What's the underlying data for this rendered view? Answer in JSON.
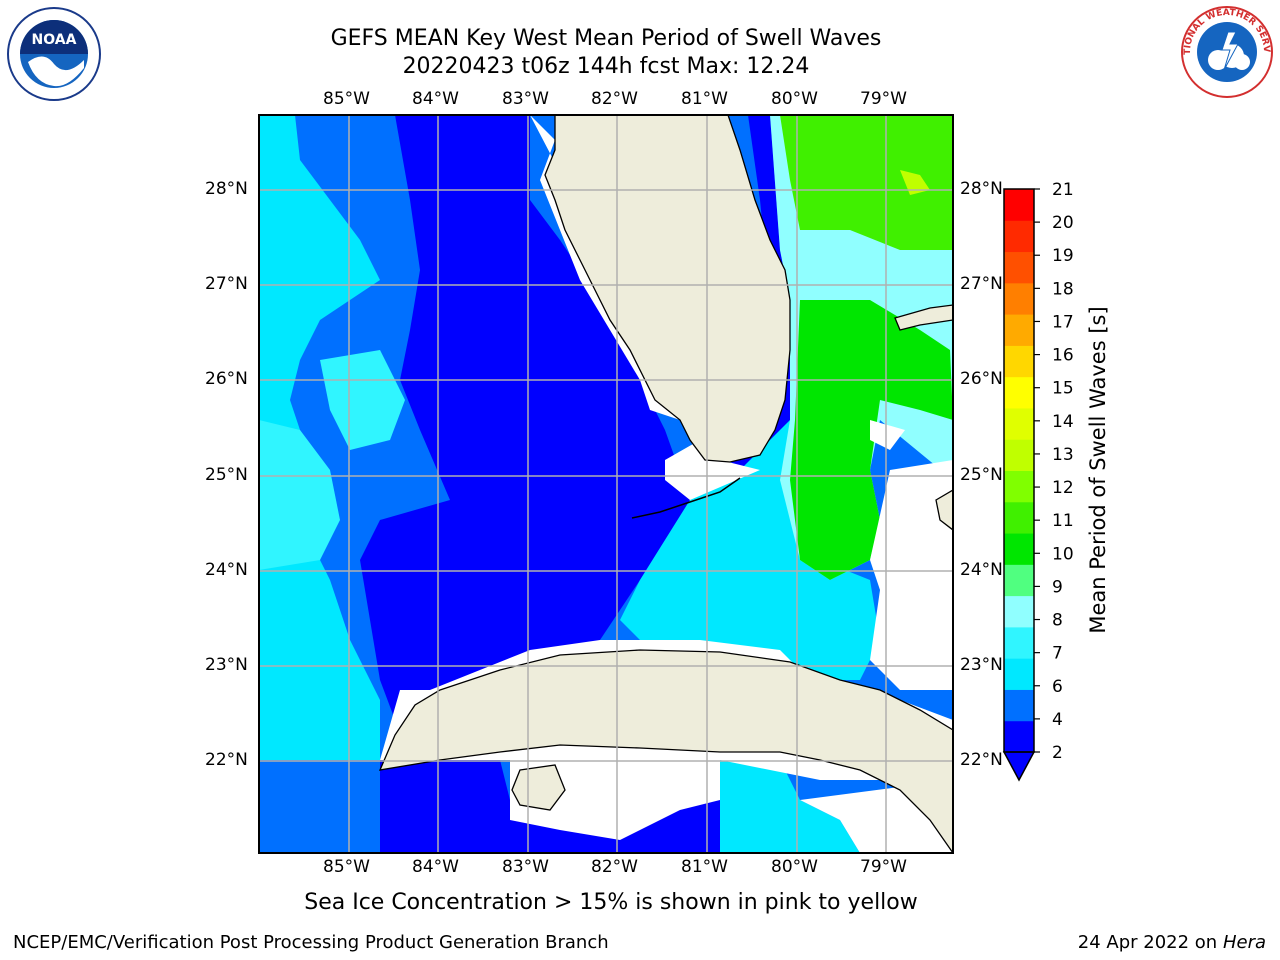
{
  "title": {
    "line1": "GEFS MEAN Key West Mean Period of Swell Waves",
    "line2": "20220423 t06z 144h fcst   Max: 12.24"
  },
  "map": {
    "lon_labels": [
      "85°W",
      "84°W",
      "83°W",
      "82°W",
      "81°W",
      "80°W",
      "79°W"
    ],
    "lat_labels": [
      "28°N",
      "27°N",
      "26°N",
      "25°N",
      "24°N",
      "23°N",
      "22°N"
    ],
    "land_color": "#eeeddb",
    "grid_color": "#b0b0b0"
  },
  "colorbar": {
    "label": "Mean Period of Swell Waves [s]",
    "ticks": [
      "2",
      "4",
      "6",
      "7",
      "8",
      "9",
      "10",
      "11",
      "12",
      "13",
      "14",
      "15",
      "16",
      "17",
      "18",
      "19",
      "20",
      "21"
    ],
    "colors": [
      "#0000ff",
      "#0070ff",
      "#00e8ff",
      "#30f5ff",
      "#90ffff",
      "#50ff80",
      "#00e600",
      "#40f000",
      "#80ff00",
      "#c0ff00",
      "#e0ff00",
      "#ffff00",
      "#ffd700",
      "#ffaa00",
      "#ff7f00",
      "#ff5000",
      "#ff2a00",
      "#ff0000"
    ]
  },
  "caption": "Sea Ice Concentration > 15% is shown in pink to yellow",
  "footer": {
    "left": "NCEP/EMC/Verification Post Processing Product Generation Branch",
    "right_prefix": "24 Apr 2022 on ",
    "right_host": "Hera"
  },
  "logos": {
    "noaa_text": "NOAA",
    "nws_text": "NATIONAL WEATHER SERVICE"
  }
}
